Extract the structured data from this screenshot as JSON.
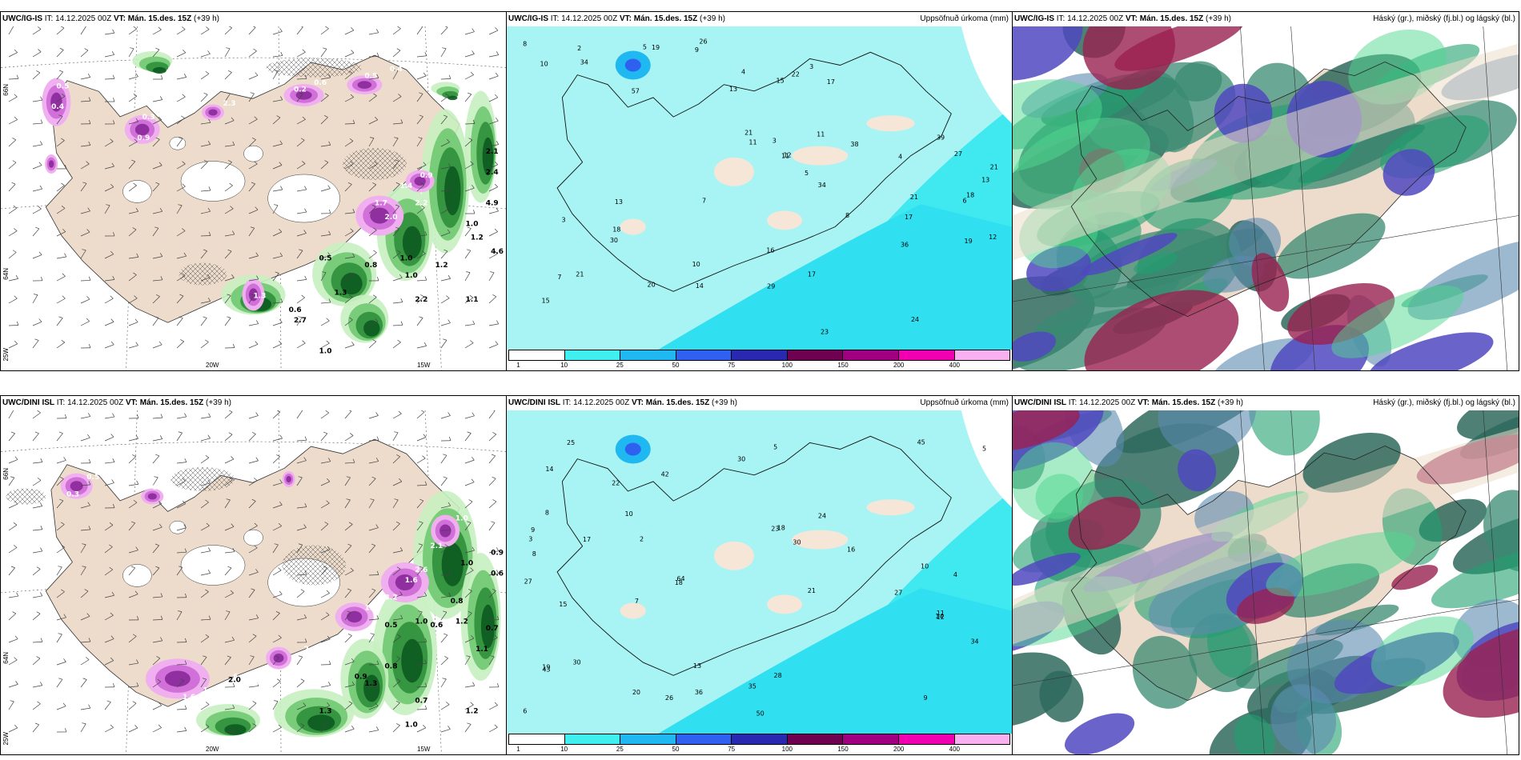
{
  "panels": [
    {
      "id": "ig-precip-type",
      "model": "UWC/IG-IS",
      "it_label": "IT:",
      "it_value": "14.12.2025 00Z",
      "vt_label": "VT:",
      "vt_value": "Mán. 15.des. 15Z",
      "lead": "(+39 h)",
      "right_title": "",
      "axis_labels": [
        "66N",
        "64N",
        "25W",
        "20W",
        "15W"
      ],
      "labels_white": [
        "0.5",
        "0.4",
        "0.3",
        "0.9",
        "2.3",
        "0.2",
        "0.6",
        "0.5",
        "0.4",
        "1.7",
        "2.0",
        "0.9",
        "1.4",
        "2.2",
        "1.3"
      ],
      "labels_green": [
        "2.1",
        "2.4",
        "4.9",
        "1.0",
        "1.2",
        "1.2",
        "0.5",
        "0.8",
        "1.0",
        "1.3",
        "2.2",
        "1.0",
        "0.6",
        "2.7",
        "1.0",
        "1.1",
        "4.6"
      ]
    },
    {
      "id": "ig-accum",
      "model": "UWC/IG-IS",
      "it_label": "IT:",
      "it_value": "14.12.2025 00Z",
      "vt_label": "VT:",
      "vt_value": "Mán. 15.des. 15Z",
      "lead": "(+39 h)",
      "right_title": "Uppsöfnuð úrkoma (mm)",
      "colorbar_values": [
        "1",
        "10",
        "25",
        "50",
        "75",
        "100",
        "150",
        "200",
        "400"
      ],
      "colorbar_colors": [
        "#ffffff",
        "#40f0f0",
        "#20b8f0",
        "#3060f0",
        "#2828b0",
        "#700050",
        "#a00080",
        "#f000b0",
        "#f8b0f0"
      ],
      "numbers": [
        "8",
        "7",
        "5",
        "3",
        "34",
        "24",
        "21",
        "57",
        "13",
        "21",
        "17",
        "11",
        "4",
        "2",
        "22",
        "18",
        "10",
        "6",
        "12",
        "4",
        "8",
        "11",
        "12",
        "3",
        "19",
        "23",
        "21",
        "20",
        "18",
        "27",
        "17",
        "39",
        "38",
        "34",
        "36",
        "29",
        "26",
        "30",
        "17",
        "16",
        "15",
        "14",
        "13",
        "19",
        "21",
        "9",
        "7",
        "5",
        "11",
        "13",
        "10",
        "3",
        "15"
      ]
    },
    {
      "id": "ig-cloud",
      "model": "UWC/IG-IS",
      "it_label": "IT:",
      "it_value": "14.12.2025 00Z",
      "vt_label": "VT:",
      "vt_value": "Mán. 15.des. 15Z",
      "lead": "(+39 h)",
      "right_title": "Háský (gr.), miðský (fj.bl.) og lágský (bl.)"
    },
    {
      "id": "dini-precip-type",
      "model": "UWC/DINI ISL",
      "it_label": "IT:",
      "it_value": "14.12.2025 00Z",
      "vt_label": "VT:",
      "vt_value": "Mán. 15.des. 15Z",
      "lead": "(+39 h)",
      "right_title": "",
      "axis_labels": [
        "66N",
        "64N",
        "25W",
        "20W",
        "15W"
      ],
      "labels_white": [
        "0.5",
        "0.3",
        "0.4",
        "1.0",
        "2.1",
        "1.6",
        "2.6",
        "3.2",
        "1.5",
        "2.2",
        "6.0",
        "3.8",
        "1.2",
        "1.6"
      ],
      "labels_green": [
        "0.9",
        "0.6",
        "1.0",
        "0.8",
        "0.6",
        "0.7",
        "1.2",
        "1.1",
        "0.5",
        "1.0",
        "2.0",
        "0.8",
        "0.9",
        "1.3",
        "1.3",
        "1.2",
        "1.0",
        "0.7"
      ]
    },
    {
      "id": "dini-accum",
      "model": "UWC/DINI ISL",
      "it_label": "IT:",
      "it_value": "14.12.2025 00Z",
      "vt_label": "VT:",
      "vt_value": "Mán. 15.des. 15Z",
      "lead": "(+39 h)",
      "right_title": "Uppsöfnuð úrkoma (mm)",
      "colorbar_values": [
        "1",
        "10",
        "25",
        "50",
        "75",
        "100",
        "150",
        "200",
        "400"
      ],
      "colorbar_colors": [
        "#ffffff",
        "#40f0f0",
        "#20b8f0",
        "#3060f0",
        "#2828b0",
        "#700050",
        "#a00080",
        "#f000b0",
        "#f8b0f0"
      ],
      "numbers": [
        "6",
        "8",
        "7",
        "50",
        "27",
        "64",
        "43",
        "45",
        "30",
        "18",
        "17",
        "10",
        "9",
        "12",
        "14",
        "2",
        "4",
        "3",
        "5",
        "23",
        "25",
        "26",
        "28",
        "35",
        "30",
        "24",
        "21",
        "19",
        "27",
        "22",
        "34",
        "36",
        "42",
        "30",
        "20",
        "18",
        "16",
        "15",
        "14",
        "13",
        "11",
        "10",
        "9",
        "8",
        "5"
      ]
    },
    {
      "id": "dini-cloud",
      "model": "UWC/DINI ISL",
      "it_label": "IT:",
      "it_value": "14.12.2025 00Z",
      "vt_label": "VT:",
      "vt_value": "Mán. 15.des. 15Z",
      "lead": "(+39 h)",
      "right_title": "Háský (gr.), miðský (fj.bl.) og lágský (bl.)"
    }
  ]
}
